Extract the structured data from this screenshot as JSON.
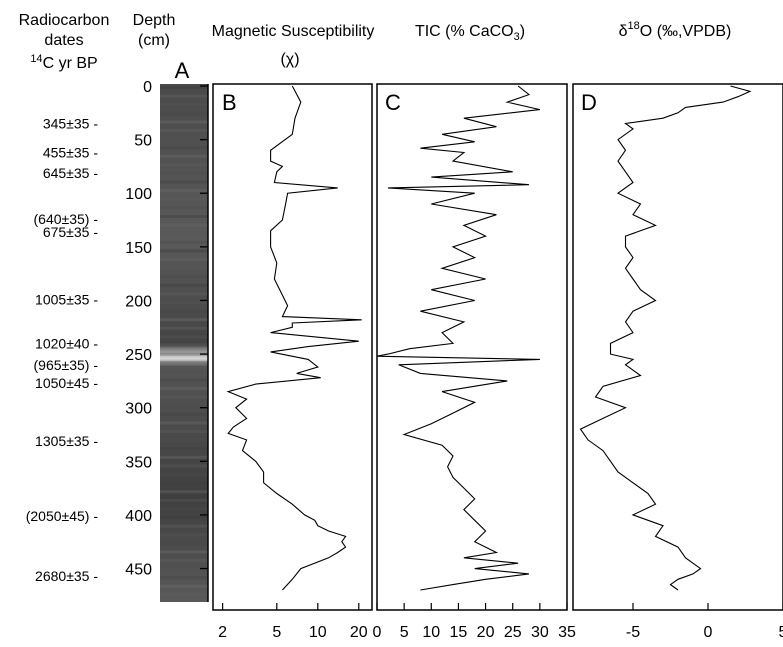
{
  "headers": {
    "radiocarbon_line1": "Radiocarbon",
    "radiocarbon_line2": "dates",
    "radiocarbon_line3_sup": "14",
    "radiocarbon_line3": "C yr BP",
    "depth_line1": "Depth",
    "depth_line2": "(cm)",
    "magsus_line1": "Magnetic Susceptibility",
    "magsus_line2": "(χ)",
    "tic_pre": "TIC (% CaCO",
    "tic_sub": "3",
    "tic_post": ")",
    "d18o_pre": "δ",
    "d18o_sup": "18",
    "d18o_post": "O (‰,VPDB)"
  },
  "panel_letters": {
    "core": "A",
    "magsus": "B",
    "tic": "C",
    "d18o": "D"
  },
  "radiocarbon_dates": [
    {
      "label": "345±35 -",
      "depth": 35
    },
    {
      "label": "455±35 -",
      "depth": 62
    },
    {
      "label": "645±35 -",
      "depth": 81
    },
    {
      "label": "(640±35) -",
      "depth": 124
    },
    {
      "label": "675±35 -",
      "depth": 136
    },
    {
      "label": "1005±35 -",
      "depth": 199
    },
    {
      "label": "1020±40 -",
      "depth": 240
    },
    {
      "label": "(965±35) -",
      "depth": 260
    },
    {
      "label": "1050±45 -",
      "depth": 277
    },
    {
      "label": "1305±35 -",
      "depth": 331
    },
    {
      "label": "(2050±45) -",
      "depth": 401
    },
    {
      "label": "2680±35 -",
      "depth": 457
    }
  ],
  "depth_ticks": [
    "0",
    "50",
    "100",
    "150",
    "200",
    "250",
    "300",
    "350",
    "400",
    "450"
  ],
  "magsus_ticks": [
    "2",
    "5",
    "10",
    "20"
  ],
  "tic_ticks": [
    "0",
    "5",
    "10",
    "15",
    "20",
    "25",
    "30",
    "35"
  ],
  "d18o_ticks": [
    "-5",
    "0",
    "5"
  ],
  "chart_data": {
    "type": "line",
    "y_axis": {
      "label": "Depth (cm)",
      "range": [
        0,
        470
      ],
      "reversed": true
    },
    "panels": [
      {
        "panel": "B",
        "xlabel": "Magnetic Susceptibility (χ)",
        "x_scale": "log",
        "xlim": [
          1.7,
          25
        ],
        "depth": [
          0,
          15,
          30,
          45,
          60,
          70,
          75,
          80,
          90,
          95,
          100,
          110,
          125,
          135,
          150,
          165,
          180,
          195,
          205,
          215,
          218,
          221,
          225,
          230,
          238,
          243,
          248,
          255,
          262,
          268,
          272,
          278,
          285,
          292,
          300,
          310,
          318,
          324,
          330,
          340,
          350,
          360,
          370,
          380,
          390,
          400,
          405,
          410,
          415,
          420,
          425,
          430,
          435,
          440,
          450,
          460,
          470
        ],
        "values": [
          6.5,
          7.5,
          6.8,
          6.5,
          4.5,
          4.5,
          5.5,
          5.0,
          4.8,
          14.0,
          6.0,
          5.8,
          5.5,
          4.5,
          4.5,
          5.0,
          4.8,
          5.5,
          6.0,
          5.5,
          21.0,
          6.5,
          6.5,
          4.5,
          20.0,
          8.5,
          4.5,
          8.5,
          10.0,
          7.0,
          10.5,
          3.5,
          2.2,
          3.0,
          2.5,
          3.0,
          2.4,
          2.2,
          3.0,
          2.8,
          3.5,
          4.0,
          4.0,
          5.0,
          6.5,
          8.0,
          9.5,
          10.0,
          12.0,
          16.0,
          15.0,
          16.0,
          14.0,
          12.0,
          7.5,
          6.5,
          5.5
        ]
      },
      {
        "panel": "C",
        "xlabel": "TIC (% CaCO3)",
        "x_scale": "linear",
        "xlim": [
          0,
          35
        ],
        "depth": [
          0,
          8,
          15,
          22,
          30,
          38,
          45,
          52,
          58,
          62,
          70,
          80,
          85,
          92,
          95,
          100,
          110,
          120,
          130,
          140,
          150,
          160,
          170,
          180,
          190,
          200,
          210,
          220,
          230,
          240,
          245,
          250,
          252,
          255,
          260,
          268,
          275,
          285,
          295,
          305,
          315,
          325,
          335,
          345,
          355,
          365,
          375,
          385,
          395,
          405,
          415,
          425,
          435,
          440,
          445,
          450,
          455,
          460,
          465,
          470
        ],
        "values": [
          26,
          28,
          24,
          30,
          16,
          22,
          12,
          18,
          8,
          16,
          14,
          25,
          10,
          28,
          2,
          18,
          10,
          22,
          16,
          20,
          14,
          18,
          12,
          20,
          10,
          18,
          8,
          16,
          12,
          14,
          6,
          2,
          0,
          30,
          4,
          8,
          24,
          12,
          18,
          14,
          10,
          5,
          12,
          14,
          13,
          14,
          16,
          18,
          16,
          18,
          20,
          18,
          22,
          16,
          26,
          18,
          28,
          20,
          14,
          8
        ]
      },
      {
        "panel": "D",
        "xlabel": "δ18O (‰,VPDB)",
        "x_scale": "linear",
        "xlim": [
          -9,
          5
        ],
        "depth": [
          0,
          5,
          10,
          15,
          20,
          25,
          30,
          35,
          40,
          50,
          60,
          70,
          80,
          90,
          100,
          110,
          120,
          130,
          140,
          150,
          160,
          170,
          180,
          190,
          200,
          210,
          220,
          230,
          240,
          250,
          255,
          260,
          270,
          280,
          290,
          300,
          310,
          320,
          330,
          340,
          350,
          360,
          370,
          380,
          390,
          400,
          410,
          420,
          430,
          440,
          450,
          455,
          460,
          465,
          470
        ],
        "values": [
          1.5,
          2.8,
          2.0,
          1.0,
          -1.5,
          -2.0,
          -3.0,
          -5.5,
          -5.0,
          -6.0,
          -5.5,
          -6.0,
          -5.5,
          -5.0,
          -6.0,
          -4.5,
          -5.0,
          -3.5,
          -5.5,
          -5.5,
          -5.0,
          -5.5,
          -5.0,
          -4.5,
          -3.5,
          -5.0,
          -5.5,
          -5.0,
          -6.5,
          -6.5,
          -5.0,
          -5.5,
          -4.5,
          -7.0,
          -7.5,
          -5.5,
          -7.0,
          -8.5,
          -8.0,
          -7.0,
          -6.5,
          -6.0,
          -5.0,
          -4.0,
          -3.5,
          -5.0,
          -3.0,
          -3.5,
          -2.0,
          -1.5,
          -0.5,
          -1.0,
          -2.0,
          -2.5,
          -2.0
        ]
      }
    ]
  }
}
